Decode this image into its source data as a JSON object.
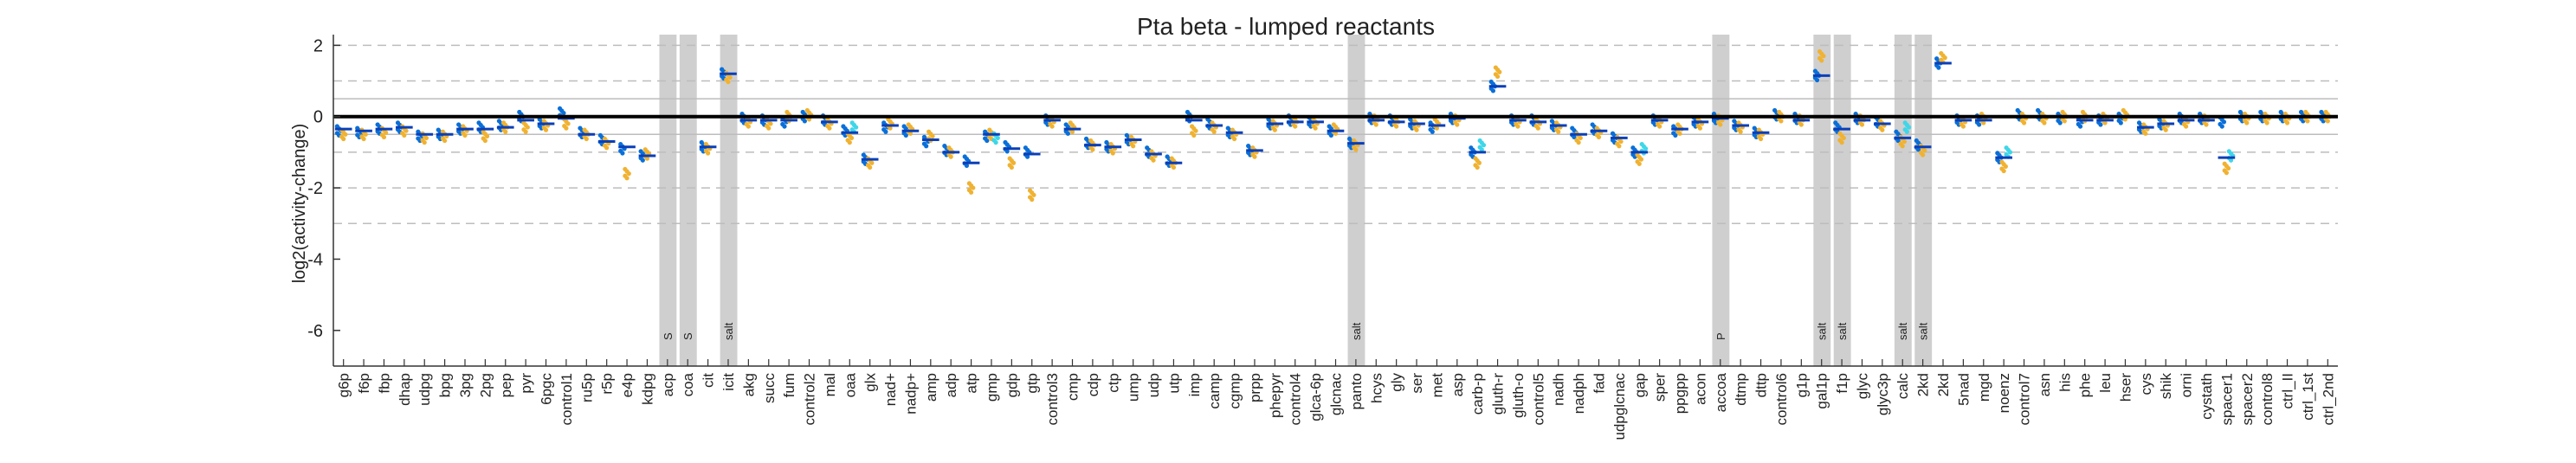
{
  "chart_data": {
    "type": "scatter",
    "title": "Pta beta - lumped reactants",
    "xlabel": "",
    "ylabel": "log2(activity-change)",
    "ylim": [
      -7,
      2.3
    ],
    "yticks": [
      2,
      0,
      -2,
      -4,
      -6
    ],
    "grid": "dashed horizontal lines at ±0.5 (solid), ±1 and ±2, -3 (dashed)",
    "reference_lines": {
      "solid": [
        0.5,
        -0.5
      ],
      "dashed": [
        1,
        -1,
        2,
        -2,
        -3
      ],
      "zero": 0
    },
    "categories": [
      "g6p",
      "f6p",
      "fbp",
      "dhap",
      "udpg",
      "bpg",
      "3pg",
      "2pg",
      "pep",
      "pyr",
      "6pgc",
      "control1",
      "ru5p",
      "r5p",
      "e4p",
      "kdpg",
      "acp",
      "coa",
      "cit",
      "icit",
      "akg",
      "succ",
      "fum",
      "control2",
      "mal",
      "oaa",
      "glx",
      "nad+",
      "nadp+",
      "amp",
      "adp",
      "atp",
      "gmp",
      "gdp",
      "gtp",
      "control3",
      "cmp",
      "cdp",
      "ctp",
      "ump",
      "udp",
      "utp",
      "imp",
      "camp",
      "cgmp",
      "prpp",
      "phepyr",
      "control4",
      "glca-6p",
      "glcnac",
      "panto",
      "hcys",
      "gly",
      "ser",
      "met",
      "asp",
      "carb-p",
      "gluth-r",
      "gluth-o",
      "control5",
      "nadh",
      "nadph",
      "fad",
      "udpglcnac",
      "gap",
      "sper",
      "ppgpp",
      "acon",
      "accoa",
      "dtmp",
      "dttp",
      "control6",
      "g1p",
      "gal1p",
      "f1p",
      "glyc",
      "glyc3p",
      "calc",
      "2kd",
      "2kd",
      "5nad",
      "mgd",
      "noenz",
      "control7",
      "asn",
      "his",
      "phe",
      "leu",
      "hser",
      "cys",
      "shik",
      "orni",
      "cystath",
      "spacer1",
      "spacer2",
      "control8",
      "ctrl_II",
      "ctrl_1st",
      "ctrl_2nd"
    ],
    "highlight_columns": [
      {
        "category": "acp",
        "label": "S"
      },
      {
        "category": "coa",
        "label": "S"
      },
      {
        "category": "icit",
        "label": "salt"
      },
      {
        "category": "panto",
        "label": "salt"
      },
      {
        "category": "accoa",
        "label": "P"
      },
      {
        "category": "gal1p",
        "label": "salt"
      },
      {
        "category": "f1p",
        "label": "salt"
      },
      {
        "category": "calc",
        "label": "salt"
      },
      {
        "category": "2kd",
        "label": "salt"
      }
    ],
    "series": [
      {
        "name": "",
        "color": "#0a6fd8",
        "values": [
          -0.4,
          -0.45,
          -0.35,
          -0.3,
          -0.55,
          -0.5,
          -0.35,
          -0.3,
          -0.25,
          0.0,
          -0.2,
          0.1,
          -0.45,
          -0.65,
          -0.9,
          -1.1,
          null,
          null,
          -0.85,
          1.2,
          -0.05,
          -0.1,
          -0.15,
          0.0,
          -0.1,
          -0.4,
          -1.2,
          -0.3,
          -0.4,
          -0.7,
          -0.95,
          -1.25,
          -0.55,
          -0.85,
          -1.0,
          -0.1,
          -0.35,
          -0.75,
          -0.85,
          -0.65,
          -1.0,
          -1.25,
          0.0,
          -0.2,
          -0.45,
          -0.95,
          -0.2,
          -0.1,
          -0.15,
          -0.4,
          -0.75,
          -0.05,
          -0.1,
          -0.2,
          -0.3,
          -0.05,
          -1.0,
          0.85,
          -0.1,
          -0.1,
          -0.25,
          -0.45,
          -0.35,
          -0.6,
          -1.0,
          -0.1,
          -0.4,
          -0.15,
          -0.05,
          -0.25,
          -0.45,
          0.05,
          -0.05,
          1.15,
          -0.3,
          -0.05,
          -0.15,
          -0.55,
          -0.8,
          1.5,
          -0.1,
          -0.1,
          -1.15,
          0.05,
          0.05,
          -0.05,
          -0.15,
          -0.1,
          -0.05,
          -0.3,
          -0.2,
          -0.05,
          -0.05,
          -0.15,
          0.0,
          0.0,
          0.0,
          0.0,
          0.0
        ]
      },
      {
        "name": "",
        "color": "#f0b232",
        "values": [
          -0.5,
          -0.5,
          -0.45,
          -0.4,
          -0.6,
          -0.55,
          -0.4,
          -0.55,
          -0.3,
          -0.3,
          -0.25,
          -0.2,
          -0.5,
          -0.75,
          -1.6,
          -1.05,
          null,
          null,
          -0.9,
          1.1,
          -0.15,
          -0.2,
          0.0,
          0.05,
          -0.2,
          -0.6,
          -1.3,
          -0.2,
          -0.35,
          -0.55,
          -1.0,
          -2.0,
          -0.5,
          -1.3,
          -2.2,
          -0.15,
          -0.3,
          -0.8,
          -0.9,
          -0.7,
          -1.1,
          -1.3,
          -0.4,
          -0.3,
          -0.5,
          -1.0,
          -0.25,
          -0.15,
          -0.2,
          -0.35,
          -0.8,
          -0.1,
          -0.15,
          -0.25,
          -0.2,
          -0.1,
          -1.3,
          1.25,
          -0.15,
          -0.2,
          -0.3,
          -0.6,
          -0.45,
          -0.7,
          -1.2,
          -0.15,
          -0.35,
          -0.2,
          -0.1,
          -0.3,
          -0.5,
          0.0,
          -0.1,
          1.7,
          -0.6,
          -0.1,
          -0.25,
          -0.7,
          -0.95,
          1.65,
          -0.15,
          -0.05,
          -1.4,
          -0.05,
          -0.05,
          0.0,
          0.0,
          -0.05,
          0.05,
          -0.35,
          -0.25,
          -0.15,
          -0.1,
          -1.45,
          -0.05,
          -0.05,
          -0.05,
          0.0,
          0.0
        ]
      },
      {
        "name": "",
        "color": "#3fd6e8",
        "values": [
          null,
          null,
          null,
          null,
          null,
          null,
          null,
          null,
          null,
          null,
          null,
          null,
          null,
          null,
          null,
          null,
          null,
          null,
          null,
          null,
          null,
          null,
          null,
          null,
          null,
          -0.3,
          null,
          null,
          null,
          null,
          null,
          null,
          -0.6,
          null,
          null,
          null,
          null,
          null,
          null,
          null,
          null,
          null,
          null,
          null,
          null,
          null,
          null,
          null,
          null,
          null,
          null,
          null,
          null,
          null,
          null,
          null,
          -0.8,
          null,
          null,
          null,
          null,
          null,
          null,
          null,
          -0.9,
          null,
          null,
          null,
          null,
          null,
          null,
          null,
          null,
          null,
          null,
          null,
          null,
          -0.3,
          null,
          null,
          null,
          null,
          -1.0,
          null,
          null,
          null,
          null,
          null,
          null,
          null,
          null,
          null,
          null,
          -1.1,
          null,
          null,
          null,
          null,
          null
        ]
      }
    ],
    "medians": [
      -0.35,
      -0.4,
      -0.35,
      -0.3,
      -0.5,
      -0.5,
      -0.35,
      -0.35,
      -0.3,
      -0.1,
      -0.2,
      -0.05,
      -0.5,
      -0.7,
      -0.85,
      -1.1,
      null,
      null,
      -0.85,
      1.2,
      -0.1,
      -0.1,
      -0.1,
      0.0,
      -0.15,
      -0.45,
      -1.2,
      -0.25,
      -0.4,
      -0.65,
      -1.0,
      -1.3,
      -0.5,
      -0.9,
      -1.05,
      -0.1,
      -0.35,
      -0.8,
      -0.85,
      -0.65,
      -1.05,
      -1.3,
      -0.1,
      -0.25,
      -0.45,
      -0.95,
      -0.2,
      -0.15,
      -0.15,
      -0.4,
      -0.75,
      -0.1,
      -0.15,
      -0.2,
      -0.25,
      -0.05,
      -1.0,
      0.85,
      -0.1,
      -0.15,
      -0.25,
      -0.5,
      -0.4,
      -0.6,
      -1.0,
      -0.1,
      -0.35,
      -0.15,
      -0.05,
      -0.25,
      -0.45,
      0.0,
      -0.1,
      1.15,
      -0.35,
      -0.1,
      -0.2,
      -0.6,
      -0.85,
      1.5,
      -0.1,
      -0.1,
      -1.15,
      0.0,
      0.0,
      0.0,
      -0.1,
      -0.1,
      0.0,
      -0.3,
      -0.2,
      -0.1,
      -0.1,
      -1.15,
      0.0,
      0.0,
      0.0,
      0.0,
      0.0
    ]
  }
}
